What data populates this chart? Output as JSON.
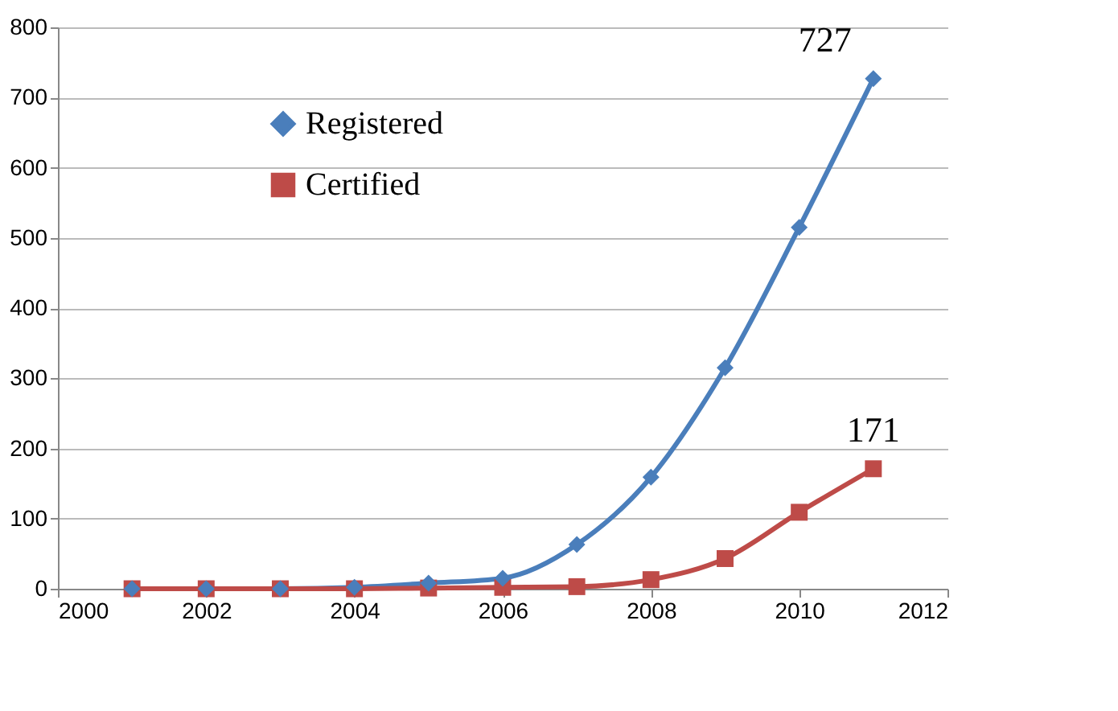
{
  "chart_data": {
    "type": "line",
    "x": [
      2001,
      2002,
      2003,
      2004,
      2005,
      2006,
      2007,
      2008,
      2009,
      2010,
      2011
    ],
    "series": [
      {
        "name": "Registered",
        "color": "#4a7ebb",
        "marker": "diamond",
        "values": [
          0,
          0,
          0,
          2,
          8,
          15,
          63,
          159,
          315,
          515,
          727
        ]
      },
      {
        "name": "Certified",
        "color": "#be4b48",
        "marker": "square",
        "values": [
          0,
          0,
          0,
          0,
          1,
          2,
          3,
          13,
          43,
          109,
          171
        ]
      }
    ],
    "xlim": [
      2000,
      2012
    ],
    "xticks": [
      2000,
      2002,
      2004,
      2006,
      2008,
      2010,
      2012
    ],
    "ylim": [
      0,
      800
    ],
    "yticks": [
      0,
      100,
      200,
      300,
      400,
      500,
      600,
      700,
      800
    ],
    "grid": "y",
    "legend": "top left",
    "annotations": [
      {
        "text": "727",
        "x": 2011,
        "y": 727
      },
      {
        "text": "171",
        "x": 2011,
        "y": 171
      }
    ]
  }
}
